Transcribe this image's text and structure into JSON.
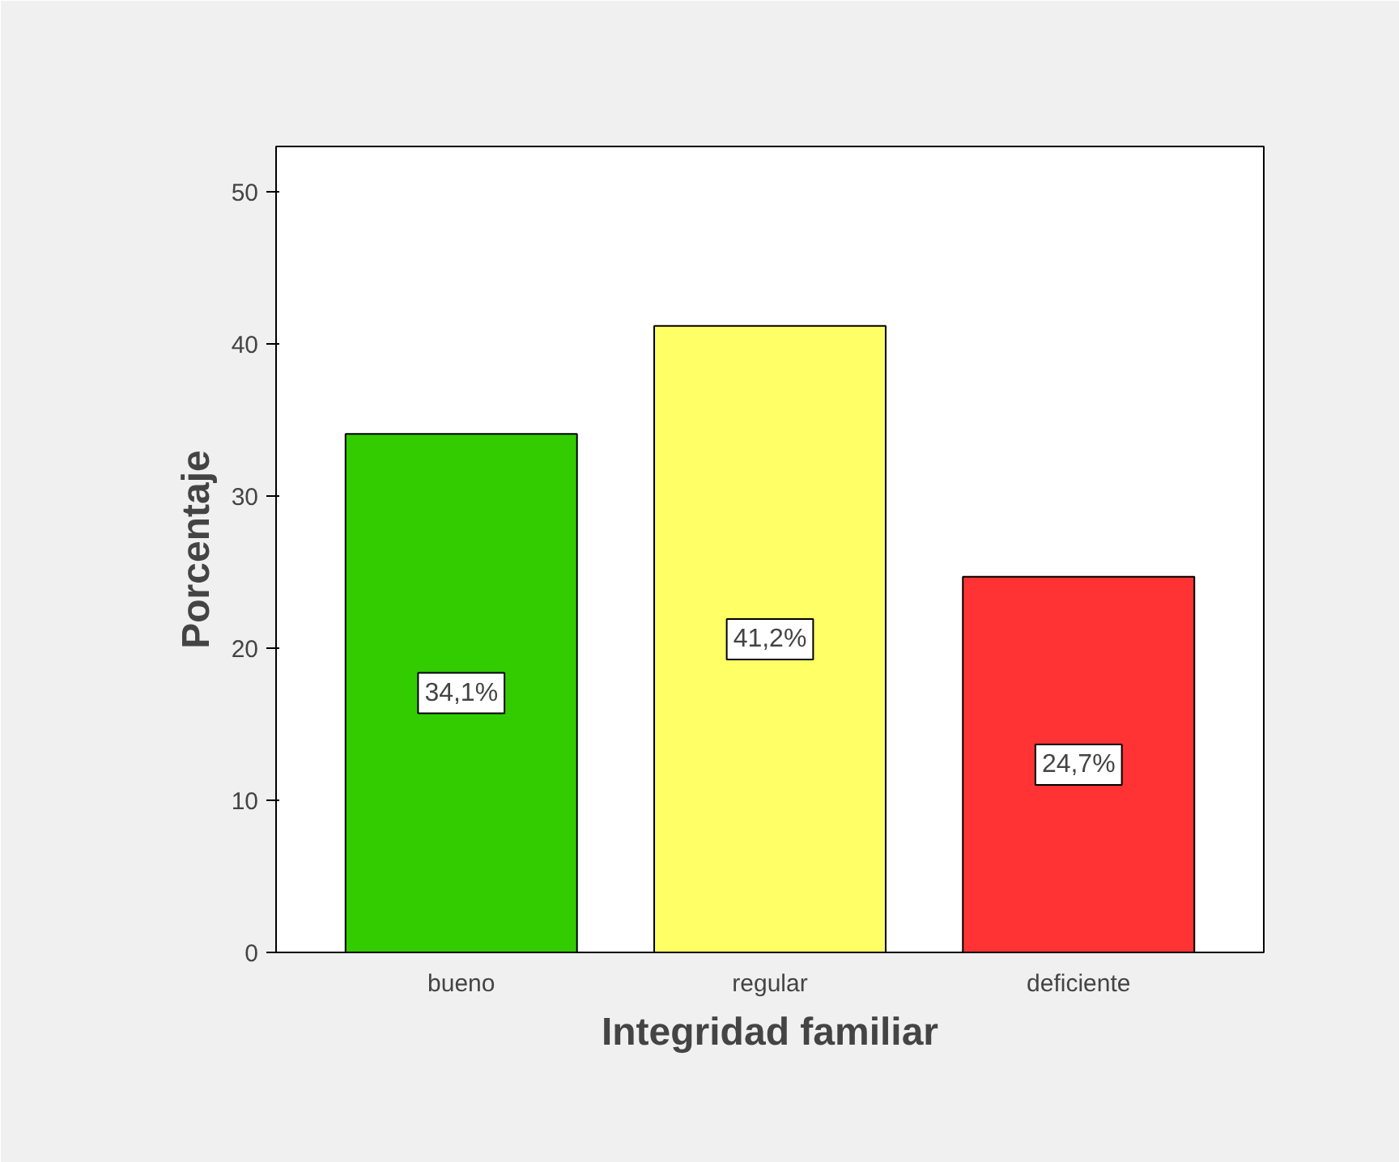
{
  "chart_data": {
    "type": "bar",
    "xlabel": "Integridad familiar",
    "ylabel": "Porcentaje",
    "categories": [
      "bueno",
      "regular",
      "deficiente"
    ],
    "values": [
      34.1,
      41.2,
      24.7
    ],
    "colors": [
      "#33cc00",
      "#ffff66",
      "#ff3333"
    ],
    "value_labels": [
      "34,1%",
      "41,2%",
      "24,7%"
    ],
    "ylim": [
      0,
      53
    ],
    "yticks": [
      0,
      10,
      20,
      30,
      40,
      50
    ],
    "grid": false
  }
}
